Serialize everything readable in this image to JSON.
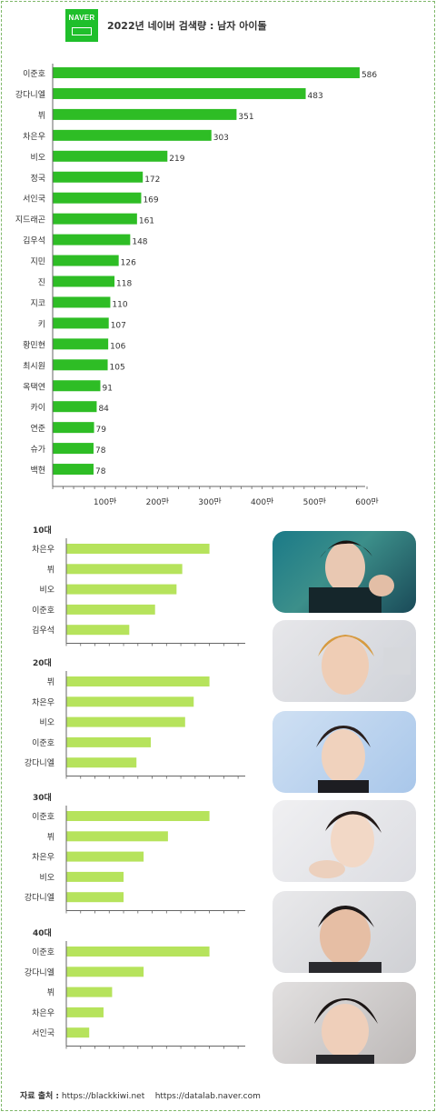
{
  "header": {
    "logo_text": "NAVER",
    "title": "2022년 네이버 검색량 :  남자 아이돌"
  },
  "colors": {
    "main_bar": "#2ebd25",
    "age_bar": "#b6e35c",
    "axis": "#666666",
    "logo": "#1fbf2b"
  },
  "chart_data": [
    {
      "type": "bar",
      "orientation": "horizontal",
      "categories": [
        "이준호",
        "강다니엘",
        "뷔",
        "차은우",
        "비오",
        "정국",
        "서인국",
        "지드래곤",
        "김우석",
        "지민",
        "진",
        "지코",
        "키",
        "황민현",
        "최시원",
        "옥택연",
        "카이",
        "연준",
        "슈가",
        "백현"
      ],
      "values": [
        586,
        483,
        351,
        303,
        219,
        172,
        169,
        161,
        148,
        126,
        118,
        110,
        107,
        106,
        105,
        91,
        84,
        79,
        78,
        78
      ],
      "value_labels": [
        "586",
        "483",
        "351",
        "303",
        "219",
        "172",
        "169",
        "161",
        "148",
        "126",
        "118",
        "110",
        "107",
        "106",
        "105",
        "91",
        "84",
        "79",
        "78",
        "78"
      ],
      "xticks": [
        100,
        200,
        300,
        400,
        500,
        600
      ],
      "xtick_labels": [
        "100만",
        "200만",
        "300만",
        "400만",
        "500만",
        "600만"
      ],
      "xlim": [
        0,
        600
      ]
    },
    {
      "type": "bar",
      "orientation": "horizontal",
      "title": "10대",
      "categories": [
        "차은우",
        "뷔",
        "비오",
        "이준호",
        "김우석"
      ],
      "values": [
        100,
        81,
        77,
        62,
        44
      ],
      "xlim": [
        0,
        125
      ]
    },
    {
      "type": "bar",
      "orientation": "horizontal",
      "title": "20대",
      "categories": [
        "뷔",
        "차은우",
        "비오",
        "이준호",
        "강다니엘"
      ],
      "values": [
        100,
        89,
        83,
        59,
        49
      ],
      "xlim": [
        0,
        125
      ]
    },
    {
      "type": "bar",
      "orientation": "horizontal",
      "title": "30대",
      "categories": [
        "이준호",
        "뷔",
        "차은우",
        "비오",
        "강다니엘"
      ],
      "values": [
        100,
        71,
        54,
        40,
        40
      ],
      "xlim": [
        0,
        125
      ]
    },
    {
      "type": "bar",
      "orientation": "horizontal",
      "title": "40대",
      "categories": [
        "이준호",
        "강다니엘",
        "뷔",
        "차은우",
        "서인국"
      ],
      "values": [
        100,
        54,
        32,
        26,
        16
      ],
      "xlim": [
        0,
        125
      ]
    }
  ],
  "footer": {
    "label": "자료 출처 :",
    "source1": "https://blackkiwi.net",
    "source2": "https://datalab.naver.com"
  }
}
